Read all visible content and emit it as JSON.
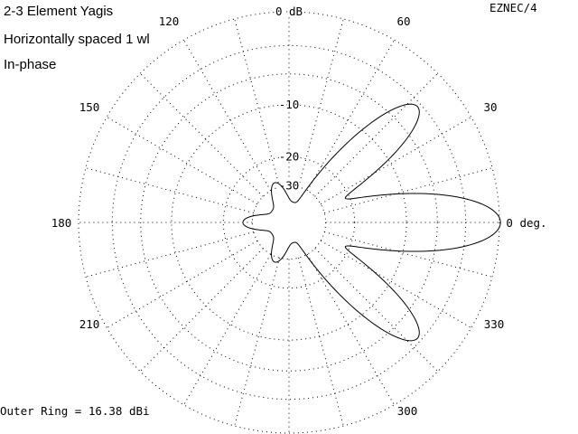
{
  "header": {
    "title_lines": [
      "2-3 Element Yagis",
      "Horizontally spaced 1 wl",
      "In-phase"
    ],
    "brand": "EZNEC/4"
  },
  "footer": {
    "outer_ring_text": "Outer Ring = 16.38 dBi"
  },
  "chart_data": {
    "type": "polar",
    "title": "2-3 Element Yagis",
    "subtitle": "Horizontally spaced 1 wl, In-phase",
    "outer_ring_dBi": 16.38,
    "ring_labels": [
      "0 dB",
      "-10",
      "-20",
      "-30"
    ],
    "ring_values_db": [
      0,
      -10,
      -20,
      -30
    ],
    "angle_labels": [
      {
        "deg": 0,
        "text": "0 deg."
      },
      {
        "deg": 30,
        "text": "30"
      },
      {
        "deg": 60,
        "text": "60"
      },
      {
        "deg": 120,
        "text": "120"
      },
      {
        "deg": 150,
        "text": "150"
      },
      {
        "deg": 180,
        "text": "180"
      },
      {
        "deg": 210,
        "text": "210"
      },
      {
        "deg": 300,
        "text": "300"
      },
      {
        "deg": 330,
        "text": "330"
      }
    ],
    "lobes_db": [
      {
        "name": "main",
        "azimuth_deg": 0,
        "peak_db": 0,
        "halfwidth_deg": 13
      },
      {
        "name": "side-upper",
        "azimuth_deg": 42,
        "peak_db": -3.5,
        "halfwidth_deg": 11
      },
      {
        "name": "side-lower",
        "azimuth_deg": 318,
        "peak_db": -3.5,
        "halfwidth_deg": 11
      },
      {
        "name": "back",
        "azimuth_deg": 180,
        "peak_db": -28,
        "halfwidth_deg": 13
      },
      {
        "name": "minor-upper",
        "azimuth_deg": 110,
        "peak_db": -30,
        "halfwidth_deg": 14
      },
      {
        "name": "minor-lower",
        "azimuth_deg": 250,
        "peak_db": -30,
        "halfwidth_deg": 14
      }
    ],
    "grid": true
  }
}
